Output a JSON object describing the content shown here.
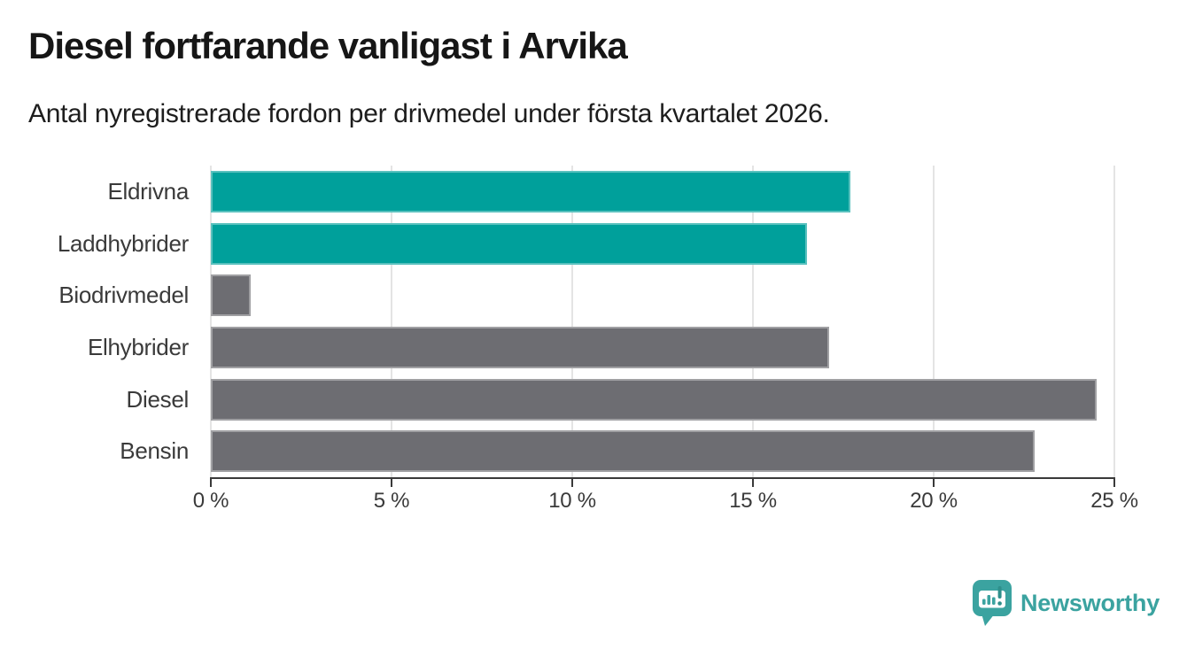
{
  "header": {
    "title": "Diesel fortfarande vanligast i Arvika",
    "subtitle": "Antal nyregistrerade fordon per drivmedel under första kvartalet 2026."
  },
  "chart_data": {
    "type": "bar",
    "orientation": "horizontal",
    "title": "Diesel fortfarande vanligast i Arvika",
    "subtitle": "Antal nyregistrerade fordon per drivmedel under första kvartalet 2026.",
    "xlabel": "",
    "ylabel": "",
    "unit": "%",
    "categories": [
      "Eldrivna",
      "Laddhybrider",
      "Biodrivmedel",
      "Elhybrider",
      "Diesel",
      "Bensin"
    ],
    "values": [
      17.7,
      16.5,
      1.1,
      17.1,
      24.5,
      22.8
    ],
    "bar_colors": [
      "#00a09b",
      "#00a09b",
      "#6d6d72",
      "#6d6d72",
      "#6d6d72",
      "#6d6d72"
    ],
    "xlim": [
      0,
      25
    ],
    "x_ticks": [
      0,
      5,
      10,
      15,
      20,
      25
    ],
    "x_tick_labels": [
      "0 %",
      "5 %",
      "10 %",
      "15 %",
      "20 %",
      "25 %"
    ],
    "grid": "vertical-only",
    "legend": "none"
  },
  "colors": {
    "accent_teal": "#00a09b",
    "bar_gray": "#6d6d72",
    "gridline": "#e4e4e4",
    "axis": "#3a3a3a",
    "title_text": "#161616",
    "logo_teal": "#3ba3a0",
    "background": "#ffffff"
  },
  "footer": {
    "brand": "Newsworthy",
    "logo_icon": "bar-chart-map-pin-icon"
  }
}
